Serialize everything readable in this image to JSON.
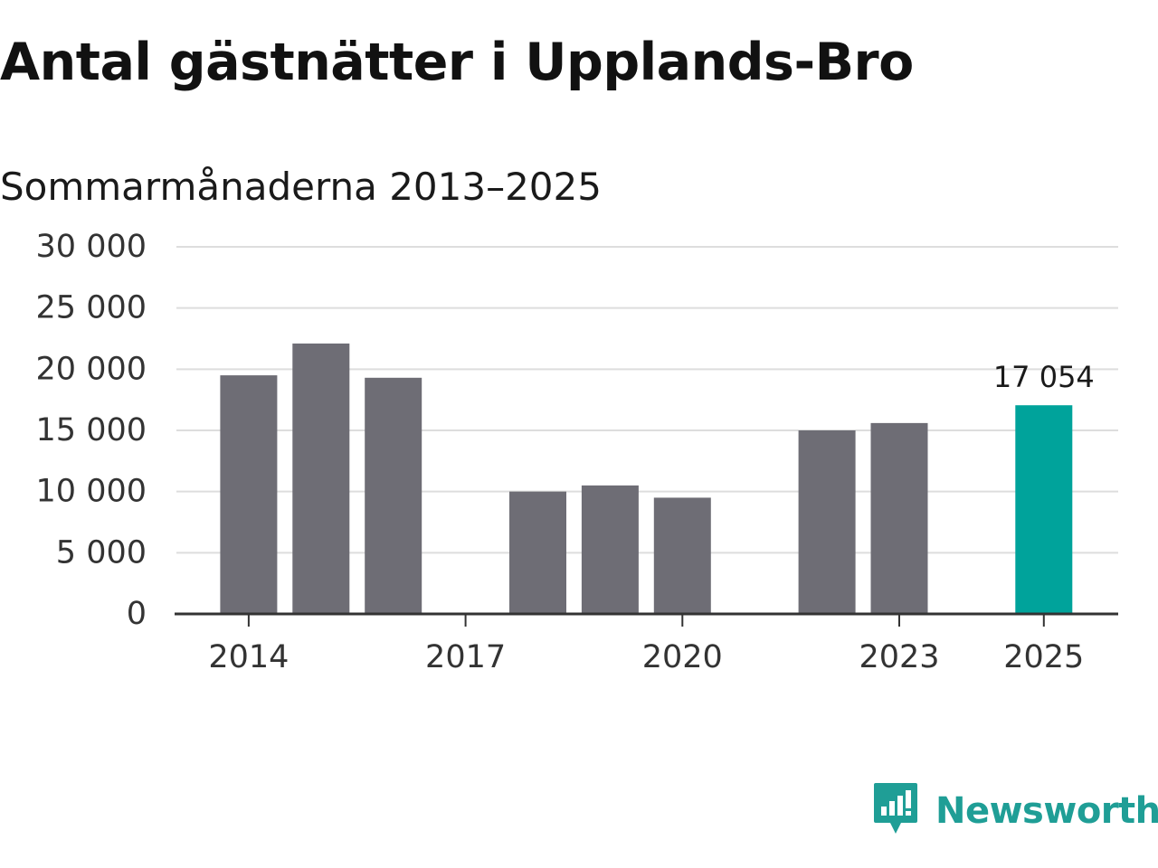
{
  "header": {
    "title": "Antal gästnätter i Upplands-Bro",
    "subtitle": "Sommarmånaderna 2013–2025"
  },
  "brand": {
    "name": "Newsworthy",
    "icon": "newsworthy-logo-icon",
    "color": "#1f9e96"
  },
  "colors": {
    "bar": "#6e6d75",
    "highlight": "#00a39b",
    "grid": "#dddddd",
    "axis": "#333333"
  },
  "chart_data": {
    "type": "bar",
    "title": "Antal gästnätter i Upplands-Bro",
    "subtitle": "Sommarmånaderna 2013–2025",
    "xlabel": "",
    "ylabel": "",
    "ylim": [
      0,
      30000
    ],
    "yticks": [
      0,
      5000,
      10000,
      15000,
      20000,
      25000,
      30000
    ],
    "ytick_labels": [
      "0",
      "5 000",
      "10 000",
      "15 000",
      "20 000",
      "25 000",
      "30 000"
    ],
    "categories": [
      2013,
      2014,
      2015,
      2016,
      2017,
      2018,
      2019,
      2020,
      2021,
      2022,
      2023,
      2024,
      2025
    ],
    "values": [
      null,
      19500,
      22100,
      19300,
      null,
      10000,
      10500,
      9500,
      null,
      15000,
      15600,
      null,
      17054
    ],
    "xtick_labels": [
      "2014",
      "2017",
      "2020",
      "2023",
      "2025"
    ],
    "highlight": {
      "category": 2025,
      "label": "17 054"
    },
    "grid": true,
    "legend": "none"
  }
}
